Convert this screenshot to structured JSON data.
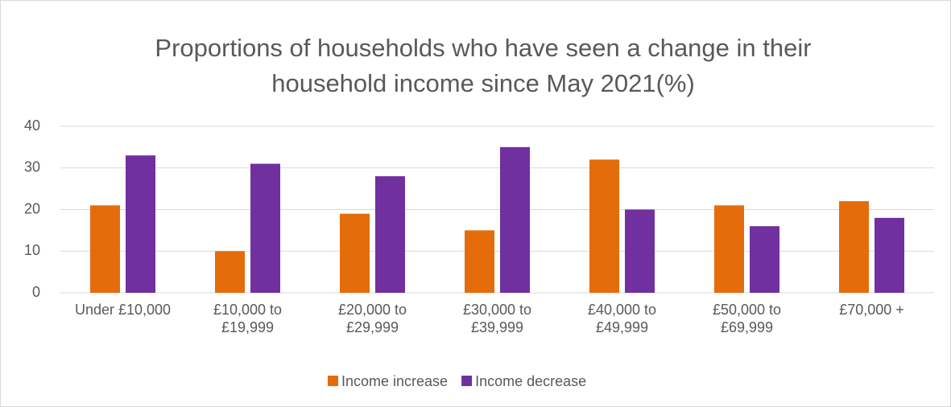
{
  "chart_data": {
    "type": "bar",
    "title": "Proportions of households who have seen a change in their household income since May 2021(%)",
    "categories": [
      "Under £10,000",
      "£10,000 to £19,999",
      "£20,000 to £29,999",
      "£30,000 to £39,999",
      "£40,000 to £49,999",
      "£50,000 to £69,999",
      "£70,000 +"
    ],
    "series": [
      {
        "name": "Income increase",
        "color": "#e46c0a",
        "values": [
          21,
          10,
          19,
          15,
          32,
          21,
          22
        ]
      },
      {
        "name": "Income decrease",
        "color": "#7030a0",
        "values": [
          33,
          31,
          28,
          35,
          20,
          16,
          18
        ]
      }
    ],
    "ylim": [
      0,
      40
    ],
    "yticks": [
      0,
      10,
      20,
      30,
      40
    ],
    "grid": true,
    "legend": "bottom"
  }
}
